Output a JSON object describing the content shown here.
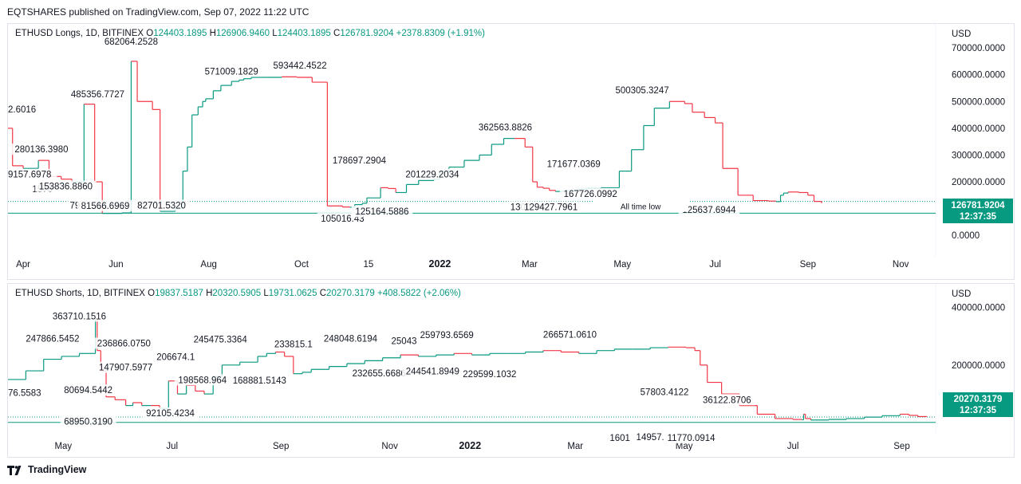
{
  "header": {
    "published": "EQTSHARES published on TradingView.com, Sep 07, 2022 11:22 UTC"
  },
  "footer": {
    "brand": "TradingView"
  },
  "colors": {
    "up": "#089981",
    "down": "#f23645",
    "current": "#089981"
  },
  "chart_data": [
    {
      "type": "line",
      "legend": {
        "symbol": "ETHUSD Longs, 1D, BITFINEX",
        "o_label": "O",
        "o": "124403.1895",
        "h_label": "H",
        "h": "126906.9460",
        "l_label": "L",
        "l": "124403.1895",
        "c_label": "C",
        "c": "126781.9204",
        "change": "+2378.8309 (+1.91%)"
      },
      "currency": "USD",
      "ylim": [
        -50000,
        730000
      ],
      "y_ticks": [
        "0.0000",
        "100000.0000",
        "200000.0000",
        "300000.0000",
        "400000.0000",
        "500000.0000",
        "600000.0000",
        "700000.0000"
      ],
      "y_tick_values": [
        0,
        100000,
        200000,
        300000,
        400000,
        500000,
        600000,
        700000
      ],
      "x_ticks": [
        "Apr",
        "Jun",
        "Aug",
        "Oct",
        "15",
        "2022",
        "Mar",
        "May",
        "Jul",
        "Sep",
        "Nov"
      ],
      "x_tick_days": [
        10,
        71,
        132,
        193,
        237,
        284,
        343,
        404,
        465,
        526,
        587
      ],
      "xlim": [
        0,
        610
      ],
      "current_value": "126781.9204",
      "current_time": "12:37:35",
      "ath_line_value": 126781.9204,
      "atl_line_value": 82701.532,
      "atl_label": "All time low",
      "series": [
        {
          "x": [
            0,
            3,
            10,
            20,
            27,
            35,
            42,
            50,
            57,
            62,
            70,
            75,
            81,
            85,
            95,
            100,
            110,
            115,
            118,
            121,
            125,
            128,
            130,
            135,
            140,
            147,
            152,
            155,
            160,
            170,
            180,
            190,
            200,
            210,
            220,
            225,
            228,
            233,
            236,
            245,
            250,
            255,
            262,
            270,
            280,
            284,
            290,
            300,
            310,
            318,
            326,
            333,
            340,
            345,
            348,
            352,
            356,
            360,
            365,
            375,
            380,
            390,
            402,
            410,
            418,
            425,
            435,
            445,
            450,
            458,
            465,
            470,
            480,
            490,
            500,
            505,
            508,
            510,
            513,
            520,
            526,
            530,
            535
          ],
          "y": [
            400000,
            260000,
            250000,
            280000,
            220000,
            210000,
            200000,
            490000,
            200000,
            82000,
            82000,
            84000,
            650000,
            500000,
            470000,
            90000,
            100000,
            240000,
            330000,
            450000,
            480000,
            500000,
            510000,
            540000,
            560000,
            575000,
            580000,
            585000,
            590000,
            590000,
            592000,
            590000,
            572000,
            110000,
            106000,
            105000,
            115000,
            120000,
            140000,
            178000,
            175000,
            160000,
            190000,
            205000,
            210000,
            240000,
            255000,
            280000,
            300000,
            340000,
            362000,
            362000,
            330000,
            200000,
            180000,
            176000,
            168000,
            164000,
            166000,
            172000,
            175000,
            178000,
            240000,
            320000,
            410000,
            475000,
            500000,
            492000,
            460000,
            440000,
            420000,
            250000,
            150000,
            130000,
            128000,
            126000,
            150000,
            158000,
            162000,
            160000,
            150000,
            126782,
            120000
          ]
        }
      ],
      "labels": [
        {
          "text": "682064.2528",
          "x": 81,
          "y": 682064,
          "anchor": "middle",
          "dy": -10
        },
        {
          "text": "485356.7727",
          "x": 59,
          "y": 485357,
          "anchor": "middle",
          "dy": -10
        },
        {
          "text": "571009.1829",
          "x": 147,
          "y": 571009,
          "anchor": "middle",
          "dy": -10
        },
        {
          "text": "593442.4522",
          "x": 192,
          "y": 593442,
          "anchor": "middle",
          "dy": -10
        },
        {
          "text": "2.6016",
          "x": 0,
          "y": 400000,
          "anchor": "start",
          "dy": -20
        },
        {
          "text": "280136.3980",
          "x": 22,
          "y": 280136,
          "anchor": "middle",
          "dy": -10
        },
        {
          "text": "9157.6978",
          "x": 0,
          "y": 180000,
          "anchor": "start",
          "dy": -12
        },
        {
          "text": "1570",
          "x": 16,
          "y": 150000,
          "anchor": "start",
          "dy": -4
        },
        {
          "text": "153836.8860",
          "x": 38,
          "y": 153837,
          "anchor": "middle",
          "dy": -6
        },
        {
          "text": "79",
          "x": 44,
          "y": 82000,
          "anchor": "middle",
          "dy": -6
        },
        {
          "text": "81566.6969",
          "x": 64,
          "y": 81567,
          "anchor": "middle",
          "dy": -6
        },
        {
          "text": "82701.5320",
          "x": 101,
          "y": 82702,
          "anchor": "middle",
          "dy": -6
        },
        {
          "text": "178697.2904",
          "x": 231,
          "y": 178697,
          "anchor": "middle",
          "dy": -30
        },
        {
          "text": "105016.43",
          "x": 220,
          "y": 105016,
          "anchor": "middle",
          "dy": 18
        },
        {
          "text": "125164.5886",
          "x": 246,
          "y": 125165,
          "anchor": "middle",
          "dy": 16
        },
        {
          "text": "201229.2034",
          "x": 279,
          "y": 201229,
          "anchor": "middle",
          "dy": -5
        },
        {
          "text": "362563.8826",
          "x": 327,
          "y": 362564,
          "anchor": "middle",
          "dy": -10
        },
        {
          "text": "1300",
          "x": 337,
          "y": 130000,
          "anchor": "middle",
          "dy": 12
        },
        {
          "text": "129427.7961",
          "x": 357,
          "y": 129428,
          "anchor": "middle",
          "dy": 12
        },
        {
          "text": "171677.0369",
          "x": 372,
          "y": 171677,
          "anchor": "middle",
          "dy": -28
        },
        {
          "text": "167726.0992",
          "x": 383,
          "y": 167726,
          "anchor": "middle",
          "dy": 8
        },
        {
          "text": "500305.3247",
          "x": 417,
          "y": 500305,
          "anchor": "middle",
          "dy": -10
        },
        {
          "text": "125637.6944",
          "x": 461,
          "y": 125638,
          "anchor": "middle",
          "dy": 14
        }
      ]
    },
    {
      "type": "line",
      "legend": {
        "symbol": "ETHUSD Shorts, 1D, BITFINEX",
        "o_label": "O",
        "o": "19837.5187",
        "h_label": "H",
        "h": "20320.5905",
        "l_label": "L",
        "l": "19731.0625",
        "c_label": "C",
        "c": "20270.3179",
        "change": "+408.5822 (+2.06%)"
      },
      "currency": "USD",
      "ylim": [
        -10000,
        420000
      ],
      "y_ticks": [
        "200000.0000",
        "400000.0000"
      ],
      "y_tick_values": [
        200000,
        400000
      ],
      "x_ticks": [
        "May",
        "Jul",
        "Sep",
        "Nov",
        "2022",
        "Mar",
        "May",
        "Jul",
        "Sep"
      ],
      "x_tick_days": [
        31,
        92,
        153,
        214,
        259,
        318,
        379,
        440,
        501
      ],
      "xlim": [
        0,
        520
      ],
      "current_value": "20270.3179",
      "current_time": "12:37:35",
      "ath_line_value": 20270.3179,
      "atl_line_value": 1601,
      "series": [
        {
          "x": [
            0,
            10,
            20,
            30,
            40,
            45,
            49,
            50,
            52,
            55,
            60,
            66,
            70,
            75,
            80,
            85,
            90,
            95,
            100,
            105,
            110,
            115,
            120,
            130,
            140,
            145,
            150,
            155,
            160,
            165,
            170,
            180,
            190,
            200,
            210,
            220,
            230,
            240,
            250,
            260,
            270,
            280,
            290,
            300,
            310,
            320,
            330,
            340,
            350,
            360,
            370,
            380,
            385,
            388,
            392,
            400,
            410,
            420,
            430,
            440,
            445,
            446,
            447,
            450,
            460,
            470,
            480,
            490,
            500,
            505,
            510,
            515
          ],
          "y": [
            150000,
            180000,
            220000,
            230000,
            240000,
            240000,
            360000,
            250000,
            180000,
            90000,
            80000,
            60000,
            70000,
            60000,
            60000,
            50000,
            145000,
            100000,
            130000,
            110000,
            100000,
            160000,
            200000,
            210000,
            230000,
            240000,
            245000,
            230000,
            170000,
            175000,
            185000,
            195000,
            205000,
            215000,
            225000,
            235000,
            230000,
            235000,
            240000,
            235000,
            240000,
            240000,
            245000,
            250000,
            245000,
            240000,
            250000,
            255000,
            255000,
            260000,
            262000,
            260000,
            250000,
            200000,
            140000,
            100000,
            60000,
            30000,
            15000,
            12000,
            11000,
            30000,
            15000,
            10000,
            12000,
            15000,
            20000,
            25000,
            30000,
            26000,
            22000,
            20270
          ]
        }
      ],
      "labels": [
        {
          "text": "363710.1516",
          "x": 40,
          "y": 363710,
          "anchor": "middle",
          "dy": 2
        },
        {
          "text": "247866.5452",
          "x": 25,
          "y": 247867,
          "anchor": "middle",
          "dy": -12
        },
        {
          "text": "236866.0750",
          "x": 65,
          "y": 236866,
          "anchor": "middle",
          "dy": -10
        },
        {
          "text": "147907.5977",
          "x": 66,
          "y": 147908,
          "anchor": "middle",
          "dy": -12
        },
        {
          "text": "80694.5442",
          "x": 45,
          "y": 80694,
          "anchor": "middle",
          "dy": -8
        },
        {
          "text": "76.5583",
          "x": 0,
          "y": 60000,
          "anchor": "start",
          "dy": -12
        },
        {
          "text": "68950.3190",
          "x": 45,
          "y": 68950,
          "anchor": "middle",
          "dy": 27
        },
        {
          "text": "92105.4234",
          "x": 91,
          "y": 92105,
          "anchor": "middle",
          "dy": 25
        },
        {
          "text": "206674.1",
          "x": 94,
          "y": 206674,
          "anchor": "middle",
          "dy": -4
        },
        {
          "text": "245475.3364",
          "x": 119,
          "y": 245475,
          "anchor": "middle",
          "dy": -12
        },
        {
          "text": "198568.964",
          "x": 109,
          "y": 198569,
          "anchor": "middle",
          "dy": 22
        },
        {
          "text": "168881.5143",
          "x": 141,
          "y": 168882,
          "anchor": "middle",
          "dy": 12
        },
        {
          "text": "233815.1",
          "x": 160,
          "y": 233815,
          "anchor": "middle",
          "dy": -10
        },
        {
          "text": "248048.6194",
          "x": 192,
          "y": 248049,
          "anchor": "middle",
          "dy": -12
        },
        {
          "text": "232655.6686",
          "x": 208,
          "y": 232656,
          "anchor": "middle",
          "dy": 26
        },
        {
          "text": "25043",
          "x": 222,
          "y": 250430,
          "anchor": "middle",
          "dy": -8
        },
        {
          "text": "259793.6569",
          "x": 246,
          "y": 259794,
          "anchor": "middle",
          "dy": -12
        },
        {
          "text": "244541.8949",
          "x": 238,
          "y": 244542,
          "anchor": "middle",
          "dy": 28
        },
        {
          "text": "229599.1032",
          "x": 270,
          "y": 229599,
          "anchor": "middle",
          "dy": 26
        },
        {
          "text": "266571.0610",
          "x": 315,
          "y": 266571,
          "anchor": "middle",
          "dy": -10
        },
        {
          "text": "57803.4122",
          "x": 368,
          "y": 57803,
          "anchor": "middle",
          "dy": -14
        },
        {
          "text": "36122.8706",
          "x": 403,
          "y": 36123,
          "anchor": "middle",
          "dy": -12
        },
        {
          "text": "1601",
          "x": 343,
          "y": 1601,
          "anchor": "middle",
          "dy": 23
        },
        {
          "text": "14957.",
          "x": 360,
          "y": 14957,
          "anchor": "middle",
          "dy": 27
        },
        {
          "text": "11770.0914",
          "x": 383,
          "y": 11770,
          "anchor": "middle",
          "dy": 27
        }
      ]
    }
  ]
}
